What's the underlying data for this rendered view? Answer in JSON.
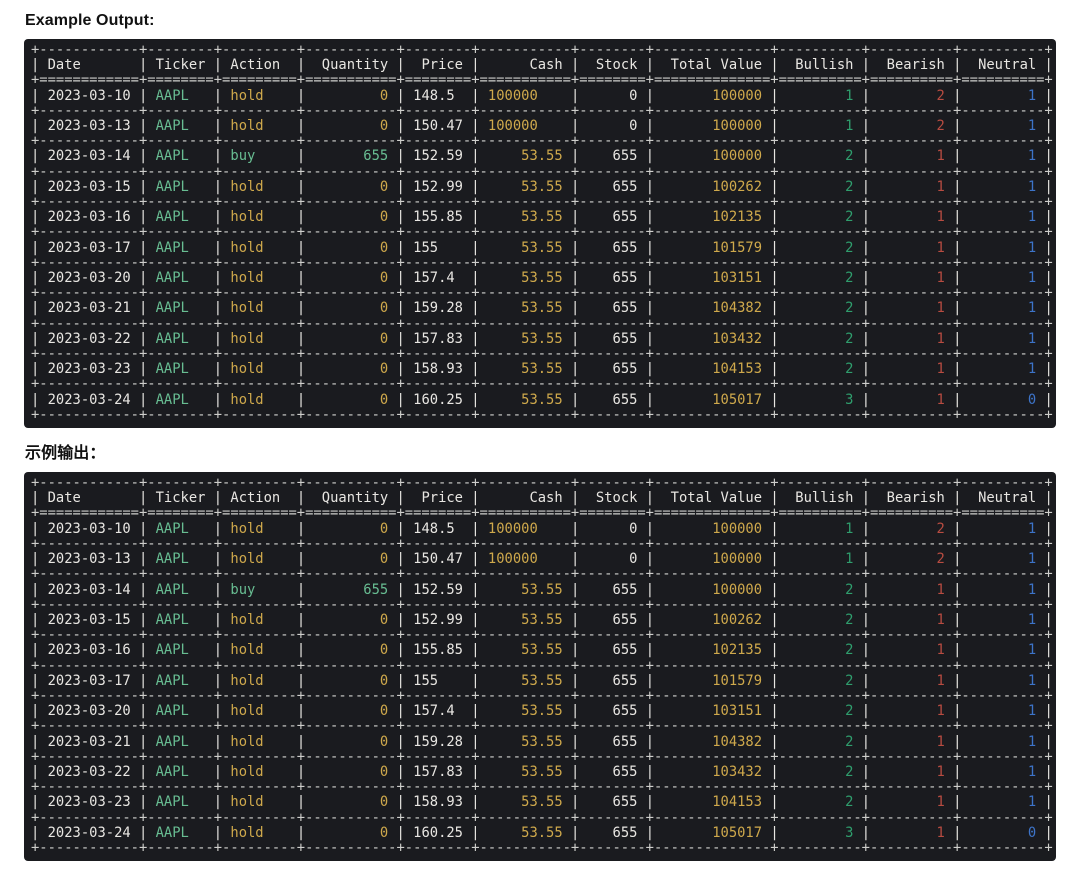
{
  "sections": [
    {
      "heading": "Example Output:",
      "lang": "en"
    },
    {
      "heading": "示例输出：",
      "lang": "zh"
    }
  ],
  "table": {
    "columns": [
      {
        "header": "Date",
        "width": 12,
        "header_align": "left",
        "value_align": "left",
        "color": "white"
      },
      {
        "header": "Ticker",
        "width": 8,
        "header_align": "left",
        "value_align": "left",
        "color": "green"
      },
      {
        "header": "Action",
        "width": 9,
        "header_align": "left",
        "value_align": "left",
        "color": "action"
      },
      {
        "header": "Quantity",
        "width": 11,
        "header_align": "right",
        "value_align": "right",
        "color": "action"
      },
      {
        "header": "Price",
        "width": 8,
        "header_align": "right",
        "value_align": "left",
        "color": "white"
      },
      {
        "header": "Cash",
        "width": 11,
        "header_align": "right",
        "value_align": "right",
        "color": "yellow"
      },
      {
        "header": "Stock",
        "width": 8,
        "header_align": "right",
        "value_align": "right",
        "color": "white"
      },
      {
        "header": "Total Value",
        "width": 14,
        "header_align": "right",
        "value_align": "right",
        "color": "yellow"
      },
      {
        "header": "Bullish",
        "width": 10,
        "header_align": "right",
        "value_align": "right",
        "color": "green2"
      },
      {
        "header": "Bearish",
        "width": 10,
        "header_align": "right",
        "value_align": "right",
        "color": "red"
      },
      {
        "header": "Neutral",
        "width": 10,
        "header_align": "right",
        "value_align": "right",
        "color": "blue"
      }
    ],
    "rows": [
      [
        "2023-03-10",
        "AAPL",
        "hold",
        "0",
        "148.5",
        "100000",
        "0",
        "100000",
        "1",
        "2",
        "1"
      ],
      [
        "2023-03-13",
        "AAPL",
        "hold",
        "0",
        "150.47",
        "100000",
        "0",
        "100000",
        "1",
        "2",
        "1"
      ],
      [
        "2023-03-14",
        "AAPL",
        "buy",
        "655",
        "152.59",
        "53.55",
        "655",
        "100000",
        "2",
        "1",
        "1"
      ],
      [
        "2023-03-15",
        "AAPL",
        "hold",
        "0",
        "152.99",
        "53.55",
        "655",
        "100262",
        "2",
        "1",
        "1"
      ],
      [
        "2023-03-16",
        "AAPL",
        "hold",
        "0",
        "155.85",
        "53.55",
        "655",
        "102135",
        "2",
        "1",
        "1"
      ],
      [
        "2023-03-17",
        "AAPL",
        "hold",
        "0",
        "155",
        "53.55",
        "655",
        "101579",
        "2",
        "1",
        "1"
      ],
      [
        "2023-03-20",
        "AAPL",
        "hold",
        "0",
        "157.4",
        "53.55",
        "655",
        "103151",
        "2",
        "1",
        "1"
      ],
      [
        "2023-03-21",
        "AAPL",
        "hold",
        "0",
        "159.28",
        "53.55",
        "655",
        "104382",
        "2",
        "1",
        "1"
      ],
      [
        "2023-03-22",
        "AAPL",
        "hold",
        "0",
        "157.83",
        "53.55",
        "655",
        "103432",
        "2",
        "1",
        "1"
      ],
      [
        "2023-03-23",
        "AAPL",
        "hold",
        "0",
        "158.93",
        "53.55",
        "655",
        "104153",
        "2",
        "1",
        "1"
      ],
      [
        "2023-03-24",
        "AAPL",
        "hold",
        "0",
        "160.25",
        "53.55",
        "655",
        "105017",
        "3",
        "1",
        "0"
      ]
    ],
    "align_overrides": [
      {
        "row": 0,
        "col": 5,
        "align": "left"
      },
      {
        "row": 1,
        "col": 5,
        "align": "left"
      }
    ],
    "action_colors": {
      "buy": "green",
      "hold": "yellow"
    }
  },
  "colors": {
    "panel_bg": "#1a1b1f",
    "border": "#cfcfcc",
    "white": "#e8e6e2",
    "green": "#68bd92",
    "green2": "#2f9e6d",
    "yellow": "#cfa94c",
    "red": "#b84c41",
    "blue": "#3d74c9",
    "heading": "#111111"
  }
}
